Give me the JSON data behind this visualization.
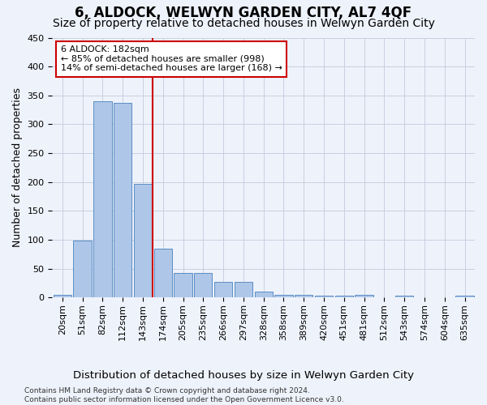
{
  "title": "6, ALDOCK, WELWYN GARDEN CITY, AL7 4QF",
  "subtitle": "Size of property relative to detached houses in Welwyn Garden City",
  "xlabel": "Distribution of detached houses by size in Welwyn Garden City",
  "ylabel": "Number of detached properties",
  "bar_color": "#aec6e8",
  "bar_edge_color": "#5b8ec4",
  "background_color": "#eef2fb",
  "grid_color": "#c8cfe0",
  "categories": [
    "20sqm",
    "51sqm",
    "82sqm",
    "112sqm",
    "143sqm",
    "174sqm",
    "205sqm",
    "235sqm",
    "266sqm",
    "297sqm",
    "328sqm",
    "358sqm",
    "389sqm",
    "420sqm",
    "451sqm",
    "481sqm",
    "512sqm",
    "543sqm",
    "574sqm",
    "604sqm",
    "635sqm"
  ],
  "values": [
    5,
    98,
    340,
    337,
    197,
    85,
    42,
    42,
    27,
    27,
    10,
    5,
    5,
    3,
    3,
    5,
    0,
    3,
    0,
    0,
    3
  ],
  "ylim": [
    0,
    450
  ],
  "yticks": [
    0,
    50,
    100,
    150,
    200,
    250,
    300,
    350,
    400,
    450
  ],
  "property_line_x": 4.5,
  "property_line_color": "#cc0000",
  "annotation_line1": "6 ALDOCK: 182sqm",
  "annotation_line2": "← 85% of detached houses are smaller (998)",
  "annotation_line3": "14% of semi-detached houses are larger (168) →",
  "annotation_box_color": "#ffffff",
  "annotation_box_edge": "#cc0000",
  "footer": "Contains HM Land Registry data © Crown copyright and database right 2024.\nContains public sector information licensed under the Open Government Licence v3.0.",
  "title_fontsize": 12,
  "subtitle_fontsize": 10,
  "xlabel_fontsize": 9.5,
  "ylabel_fontsize": 9,
  "tick_fontsize": 8,
  "annotation_fontsize": 8,
  "footer_fontsize": 6.5
}
